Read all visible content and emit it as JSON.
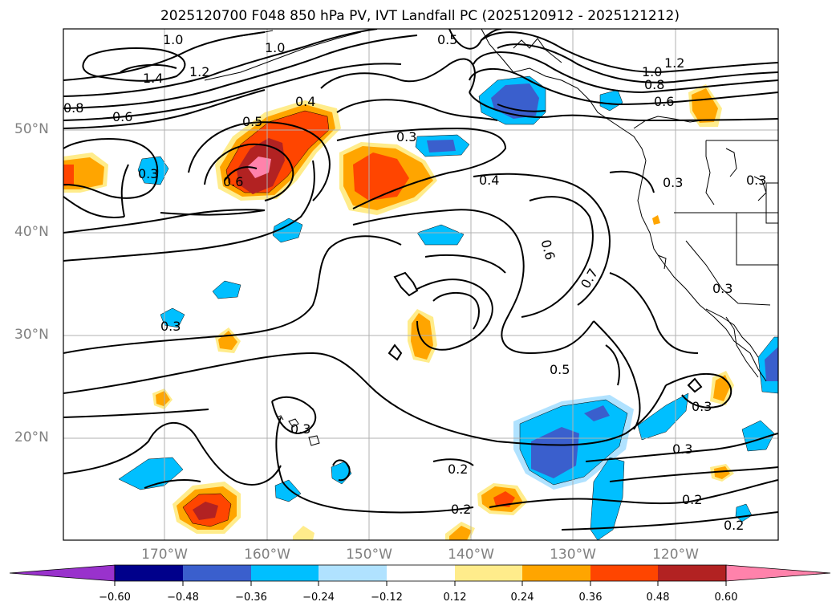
{
  "title": "2025120700 F048 850 hPa PV, IVT Landfall PC (2025120912 - 2025121212)",
  "lat_labels": [
    "50°N",
    "40°N",
    "30°N",
    "20°N"
  ],
  "lon_labels": [
    "170°W",
    "160°W",
    "150°W",
    "140°W",
    "130°W",
    "120°W"
  ],
  "contour_labels": [
    "1.0",
    "1.4",
    "1.2",
    "1.0",
    "0.8",
    "0.6",
    "0.5",
    "0.4",
    "0.6",
    "0.3",
    "0.3",
    "0.4",
    "0.5",
    "1.0",
    "1.2",
    "0.8",
    "0.6",
    "0.3",
    "0.3",
    "0.6",
    "0.7",
    "0.3",
    "0.3",
    "0.5",
    "0.3",
    "0.3",
    "0.2",
    "0.2",
    "0.3",
    "0.2",
    "0.2"
  ],
  "colorbar": {
    "ticks": [
      "−0.60",
      "−0.48",
      "−0.36",
      "−0.24",
      "−0.12",
      "0.12",
      "0.24",
      "0.36",
      "0.48",
      "0.60"
    ],
    "colors": [
      "#9932cc",
      "#00008b",
      "#3a5fcd",
      "#00bfff",
      "#b0e2ff",
      "#ffffff",
      "#ffec8b",
      "#ffa500",
      "#ff4500",
      "#b22222",
      "#ff82ab"
    ]
  }
}
